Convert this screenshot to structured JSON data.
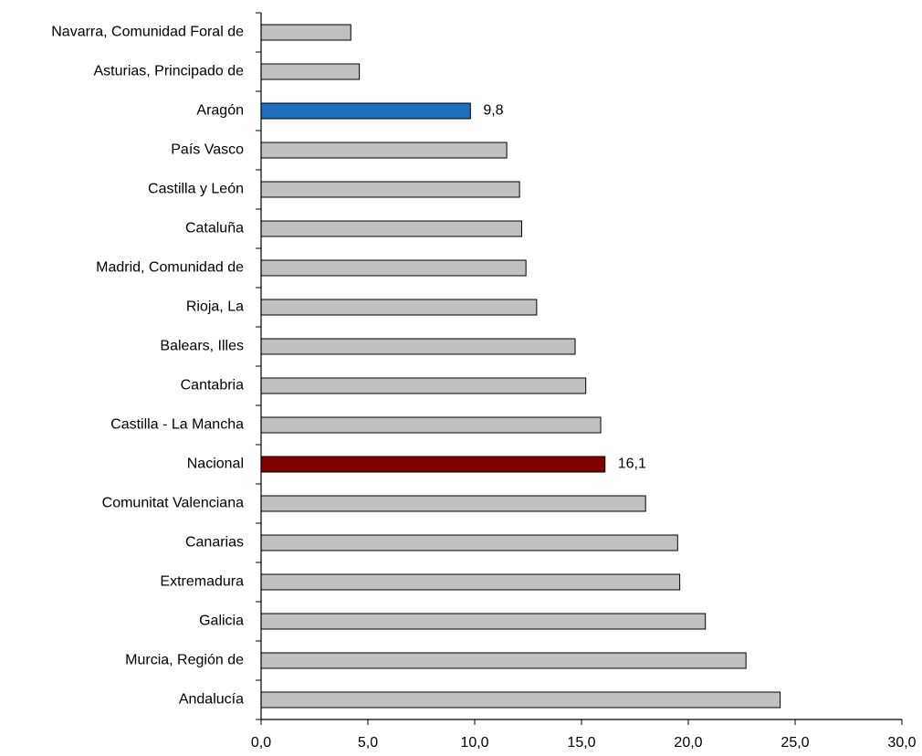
{
  "chart_data": {
    "type": "bar",
    "orientation": "horizontal",
    "categories": [
      "Navarra, Comunidad Foral de",
      "Asturias, Principado de",
      "Aragón",
      "País Vasco",
      "Castilla y León",
      "Cataluña",
      "Madrid, Comunidad de",
      "Rioja, La",
      "Balears, Illes",
      "Cantabria",
      "Castilla - La Mancha",
      "Nacional",
      "Comunitat Valenciana",
      "Canarias",
      "Extremadura",
      "Galicia",
      "Murcia, Región de",
      "Andalucía"
    ],
    "values": [
      4.2,
      4.6,
      9.8,
      11.5,
      12.1,
      12.2,
      12.4,
      12.9,
      14.7,
      15.2,
      15.9,
      16.1,
      18.0,
      19.5,
      19.6,
      20.8,
      22.7,
      24.3
    ],
    "bar_colors": {
      "default": "#c0c0c0",
      "Aragón": "#1f6fbf",
      "Nacional": "#800000"
    },
    "data_labels": [
      {
        "category": "Aragón",
        "text": "9,8"
      },
      {
        "category": "Nacional",
        "text": "16,1"
      }
    ],
    "xlim": [
      0,
      30
    ],
    "x_ticks": [
      "0,0",
      "5,0",
      "10,0",
      "15,0",
      "20,0",
      "25,0",
      "30,0"
    ],
    "grid": false,
    "title": "",
    "xlabel": "",
    "ylabel": ""
  }
}
